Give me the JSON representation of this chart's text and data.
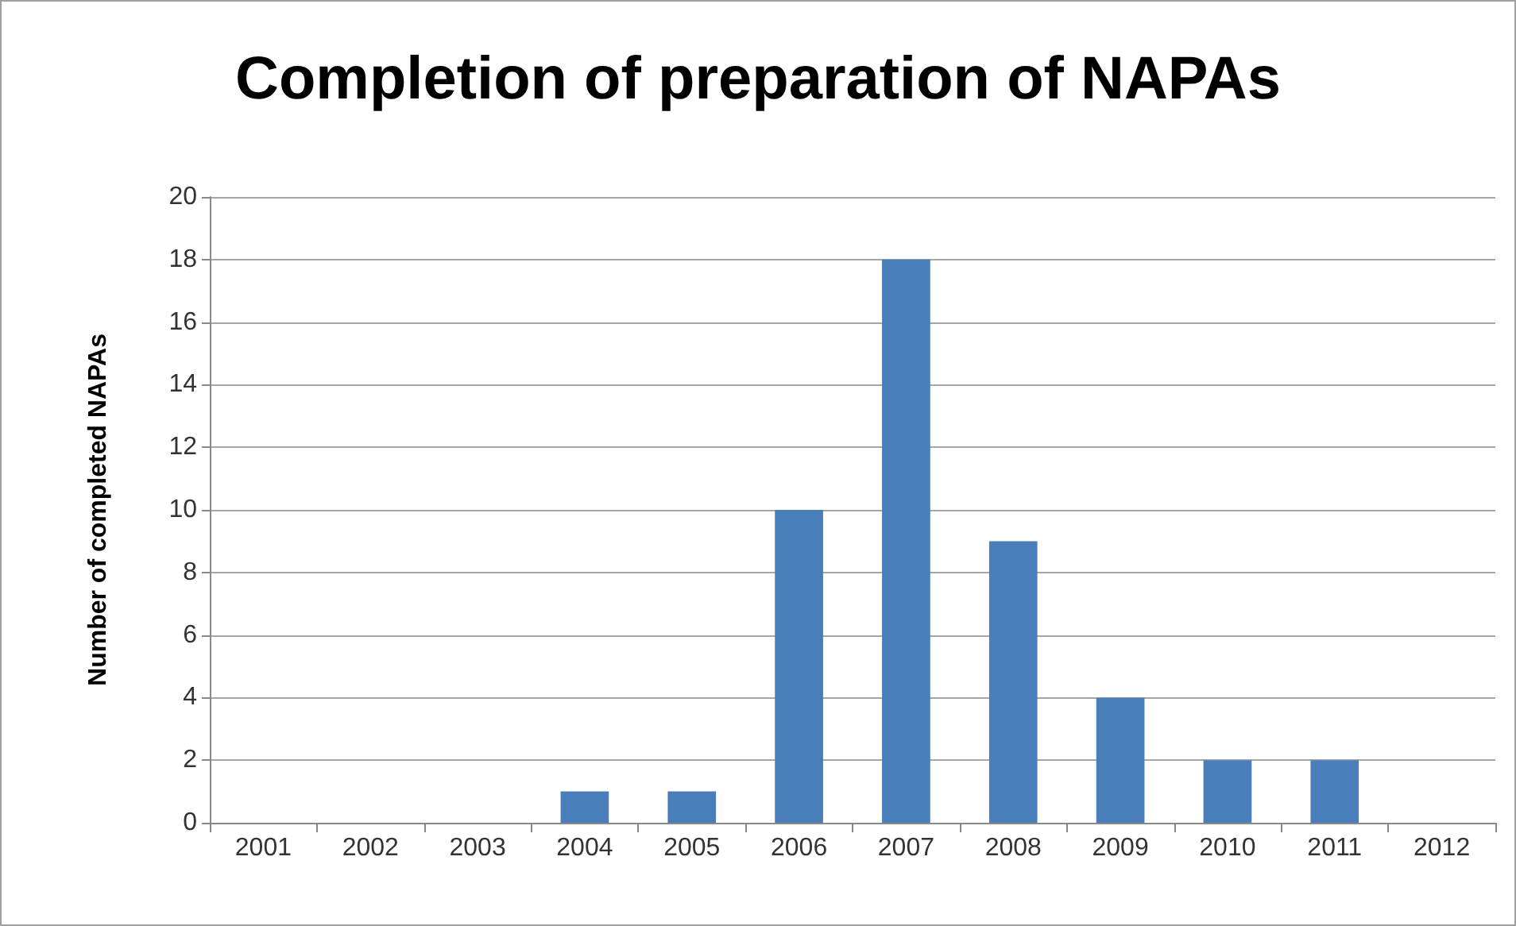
{
  "chart_data": {
    "type": "bar",
    "title": "Completion of preparation of NAPAs",
    "ylabel": "Number of completed NAPAs",
    "categories": [
      "2001",
      "2002",
      "2003",
      "2004",
      "2005",
      "2006",
      "2007",
      "2008",
      "2009",
      "2010",
      "2011",
      "2012"
    ],
    "values": [
      0,
      0,
      0,
      1,
      1,
      10,
      18,
      9,
      4,
      2,
      2,
      0
    ],
    "color": "#4a7ebb",
    "ylim": [
      0,
      20
    ],
    "yticks": [
      0,
      2,
      4,
      6,
      8,
      10,
      12,
      14,
      16,
      18,
      20
    ],
    "grid": "y"
  }
}
